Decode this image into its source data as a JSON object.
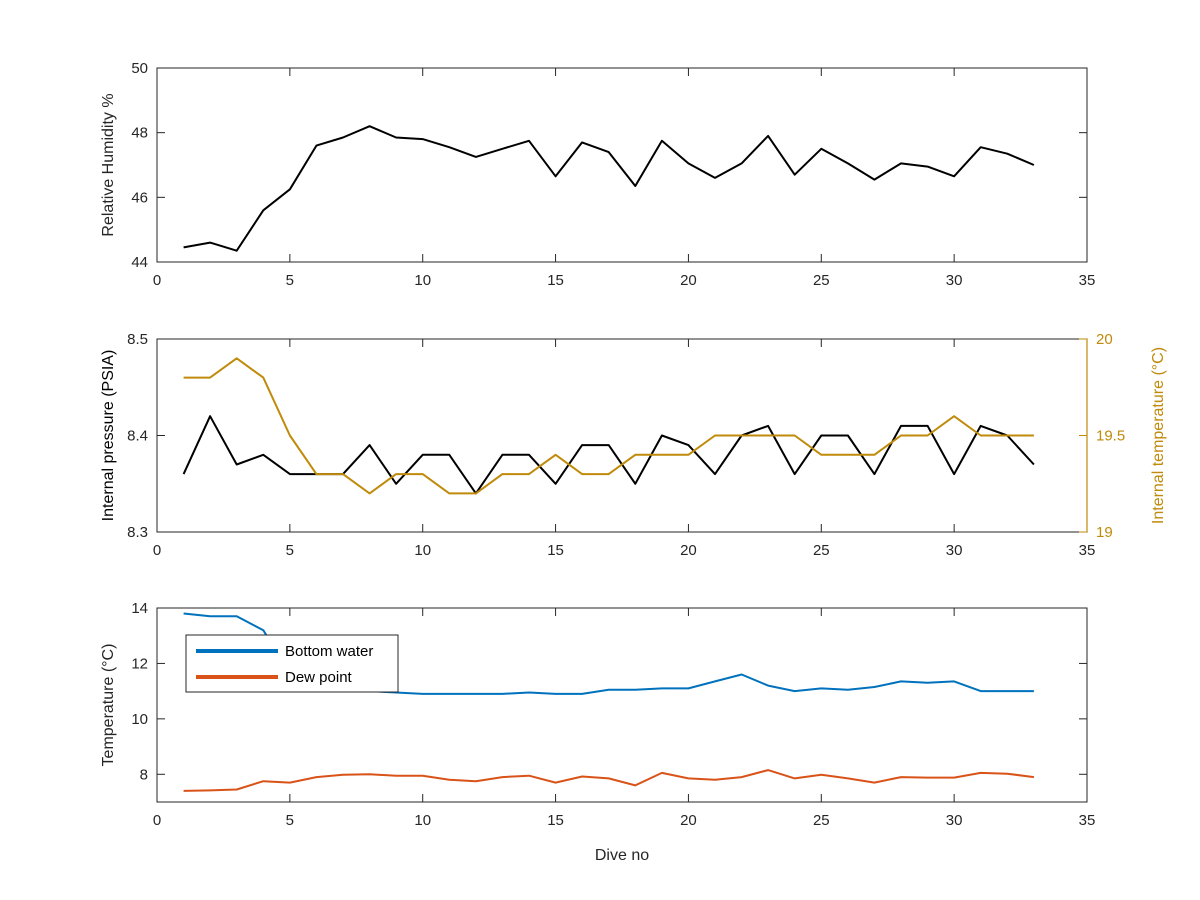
{
  "colors": {
    "axis": "#262626",
    "rh_line": "#000000",
    "pressure_line": "#000000",
    "temp_line": "#c08a0a",
    "bottom_water": "#0072bd",
    "dew_point": "#d95319"
  },
  "chart_data": [
    {
      "type": "line",
      "xlabel": "",
      "ylabel": "Relative Humidity %",
      "xlim": [
        0,
        35
      ],
      "ylim": [
        44,
        50
      ],
      "xticks": [
        0,
        5,
        10,
        15,
        20,
        25,
        30,
        35
      ],
      "yticks": [
        44,
        46,
        48,
        50
      ],
      "xtick_labels": [
        "0",
        "5",
        "10",
        "15",
        "20",
        "25",
        "30",
        "35"
      ],
      "ytick_labels": [
        "44",
        "46",
        "48",
        "50"
      ],
      "grid": false,
      "series": [
        {
          "x": [
            1,
            2,
            3,
            4,
            5,
            6,
            7,
            8,
            9,
            10,
            11,
            12,
            13,
            14,
            15,
            16,
            17,
            18,
            19,
            20,
            21,
            22,
            23,
            24,
            25,
            26,
            27,
            28,
            29,
            30,
            31,
            32,
            33
          ],
          "values": [
            44.45,
            44.6,
            44.35,
            45.6,
            46.25,
            47.6,
            47.85,
            48.2,
            47.85,
            47.8,
            47.55,
            47.25,
            47.5,
            47.75,
            46.65,
            47.7,
            47.4,
            46.35,
            47.75,
            47.05,
            46.6,
            47.05,
            47.9,
            46.7,
            47.5,
            47.05,
            46.55,
            47.05,
            46.95,
            46.65,
            47.55,
            47.35,
            47.0
          ],
          "color": "#000000"
        }
      ]
    },
    {
      "type": "line",
      "xlabel": "",
      "ylabel": "Internal pressure (PSIA)",
      "y2label": "Internal temperature (°C)",
      "xlim": [
        0,
        35
      ],
      "ylim": [
        8.3,
        8.5
      ],
      "y2lim": [
        19,
        20
      ],
      "xticks": [
        0,
        5,
        10,
        15,
        20,
        25,
        30,
        35
      ],
      "yticks": [
        8.3,
        8.4,
        8.5
      ],
      "y2ticks": [
        19,
        19.5,
        20
      ],
      "xtick_labels": [
        "0",
        "5",
        "10",
        "15",
        "20",
        "25",
        "30",
        "35"
      ],
      "ytick_labels": [
        "8.3",
        "8.4",
        "8.5"
      ],
      "y2tick_labels": [
        "19",
        "19.5",
        "20"
      ],
      "grid": false,
      "series": [
        {
          "axis": "left",
          "x": [
            1,
            2,
            3,
            4,
            5,
            6,
            7,
            8,
            9,
            10,
            11,
            12,
            13,
            14,
            15,
            16,
            17,
            18,
            19,
            20,
            21,
            22,
            23,
            24,
            25,
            26,
            27,
            28,
            29,
            30,
            31,
            32,
            33
          ],
          "values": [
            8.36,
            8.42,
            8.37,
            8.38,
            8.36,
            8.36,
            8.36,
            8.39,
            8.35,
            8.38,
            8.38,
            8.34,
            8.38,
            8.38,
            8.35,
            8.39,
            8.39,
            8.35,
            8.4,
            8.39,
            8.36,
            8.4,
            8.41,
            8.36,
            8.4,
            8.4,
            8.36,
            8.41,
            8.41,
            8.36,
            8.41,
            8.4,
            8.37
          ],
          "color": "#000000"
        },
        {
          "axis": "right",
          "x": [
            1,
            2,
            3,
            4,
            5,
            6,
            7,
            8,
            9,
            10,
            11,
            12,
            13,
            14,
            15,
            16,
            17,
            18,
            19,
            20,
            21,
            22,
            23,
            24,
            25,
            26,
            27,
            28,
            29,
            30,
            31,
            32,
            33
          ],
          "values": [
            19.8,
            19.8,
            19.9,
            19.8,
            19.5,
            19.3,
            19.3,
            19.2,
            19.3,
            19.3,
            19.2,
            19.2,
            19.3,
            19.3,
            19.4,
            19.3,
            19.3,
            19.4,
            19.4,
            19.4,
            19.5,
            19.5,
            19.5,
            19.5,
            19.4,
            19.4,
            19.4,
            19.5,
            19.5,
            19.6,
            19.5,
            19.5,
            19.5
          ],
          "color": "#c08a0a"
        }
      ]
    },
    {
      "type": "line",
      "xlabel": "Dive no",
      "ylabel": "Temperature (°C)",
      "xlim": [
        0,
        35
      ],
      "ylim": [
        7,
        14
      ],
      "xticks": [
        0,
        5,
        10,
        15,
        20,
        25,
        30,
        35
      ],
      "yticks": [
        8,
        10,
        12,
        14
      ],
      "xtick_labels": [
        "0",
        "5",
        "10",
        "15",
        "20",
        "25",
        "30",
        "35"
      ],
      "ytick_labels": [
        "8",
        "10",
        "12",
        "14"
      ],
      "grid": false,
      "legend": "top-left",
      "series": [
        {
          "name": "Bottom water",
          "x": [
            1,
            2,
            3,
            4,
            5,
            6,
            7,
            8,
            9,
            10,
            11,
            12,
            13,
            14,
            15,
            16,
            17,
            18,
            19,
            20,
            21,
            22,
            23,
            24,
            25,
            26,
            27,
            28,
            29,
            30,
            31,
            32,
            33
          ],
          "values": [
            13.8,
            13.7,
            13.7,
            13.2,
            11.6,
            11.3,
            11.1,
            11.0,
            10.95,
            10.9,
            10.9,
            10.9,
            10.9,
            10.95,
            10.9,
            10.9,
            11.05,
            11.05,
            11.1,
            11.1,
            11.35,
            11.6,
            11.2,
            11.0,
            11.1,
            11.05,
            11.15,
            11.35,
            11.3,
            11.35,
            11.0,
            11.0,
            11.0
          ],
          "color": "#0072bd"
        },
        {
          "name": "Dew point",
          "x": [
            1,
            2,
            3,
            4,
            5,
            6,
            7,
            8,
            9,
            10,
            11,
            12,
            13,
            14,
            15,
            16,
            17,
            18,
            19,
            20,
            21,
            22,
            23,
            24,
            25,
            26,
            27,
            28,
            29,
            30,
            31,
            32,
            33
          ],
          "values": [
            7.4,
            7.42,
            7.45,
            7.75,
            7.7,
            7.9,
            7.98,
            8.0,
            7.95,
            7.95,
            7.8,
            7.75,
            7.9,
            7.95,
            7.7,
            7.92,
            7.85,
            7.6,
            8.05,
            7.85,
            7.8,
            7.9,
            8.15,
            7.85,
            7.98,
            7.85,
            7.7,
            7.9,
            7.88,
            7.88,
            8.05,
            8.02,
            7.9
          ],
          "color": "#d95319"
        }
      ]
    }
  ]
}
